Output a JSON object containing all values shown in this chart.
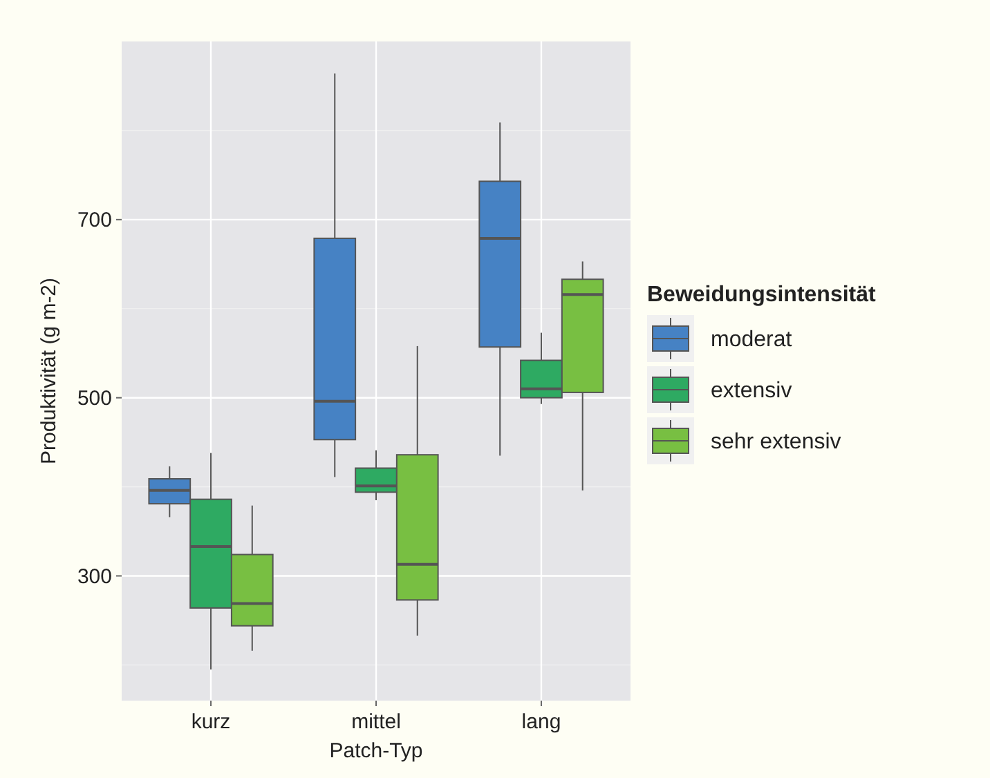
{
  "chart_data": {
    "type": "box",
    "xlabel": "Patch-Typ",
    "ylabel": "Produktivität (g m-2)",
    "legend_title": "Beweidungsintensität",
    "categories": [
      "kurz",
      "mittel",
      "lang"
    ],
    "ylim": [
      160,
      900
    ],
    "yticks": [
      300,
      500,
      700
    ],
    "grid": true,
    "legend": "right",
    "series": [
      {
        "name": "moderat",
        "color": "#4682c4",
        "boxes": [
          {
            "low": 366,
            "q1": 381,
            "median": 396,
            "q3": 409,
            "high": 423
          },
          {
            "low": 411,
            "q1": 453,
            "median": 496,
            "q3": 679,
            "high": 864
          },
          {
            "low": 435,
            "q1": 557,
            "median": 679,
            "q3": 743,
            "high": 809
          }
        ]
      },
      {
        "name": "extensiv",
        "color": "#2eaa62",
        "boxes": [
          {
            "low": 195,
            "q1": 264,
            "median": 333,
            "q3": 386,
            "high": 438
          },
          {
            "low": 385,
            "q1": 394,
            "median": 401,
            "q3": 421,
            "high": 441
          },
          {
            "low": 493,
            "q1": 500,
            "median": 510,
            "q3": 542,
            "high": 573
          }
        ]
      },
      {
        "name": "sehr extensiv",
        "color": "#78bf42",
        "boxes": [
          {
            "low": 216,
            "q1": 244,
            "median": 269,
            "q3": 324,
            "high": 379
          },
          {
            "low": 233,
            "q1": 273,
            "median": 313,
            "q3": 436,
            "high": 558
          },
          {
            "low": 396,
            "q1": 506,
            "median": 616,
            "q3": 633,
            "high": 653
          }
        ]
      }
    ]
  }
}
